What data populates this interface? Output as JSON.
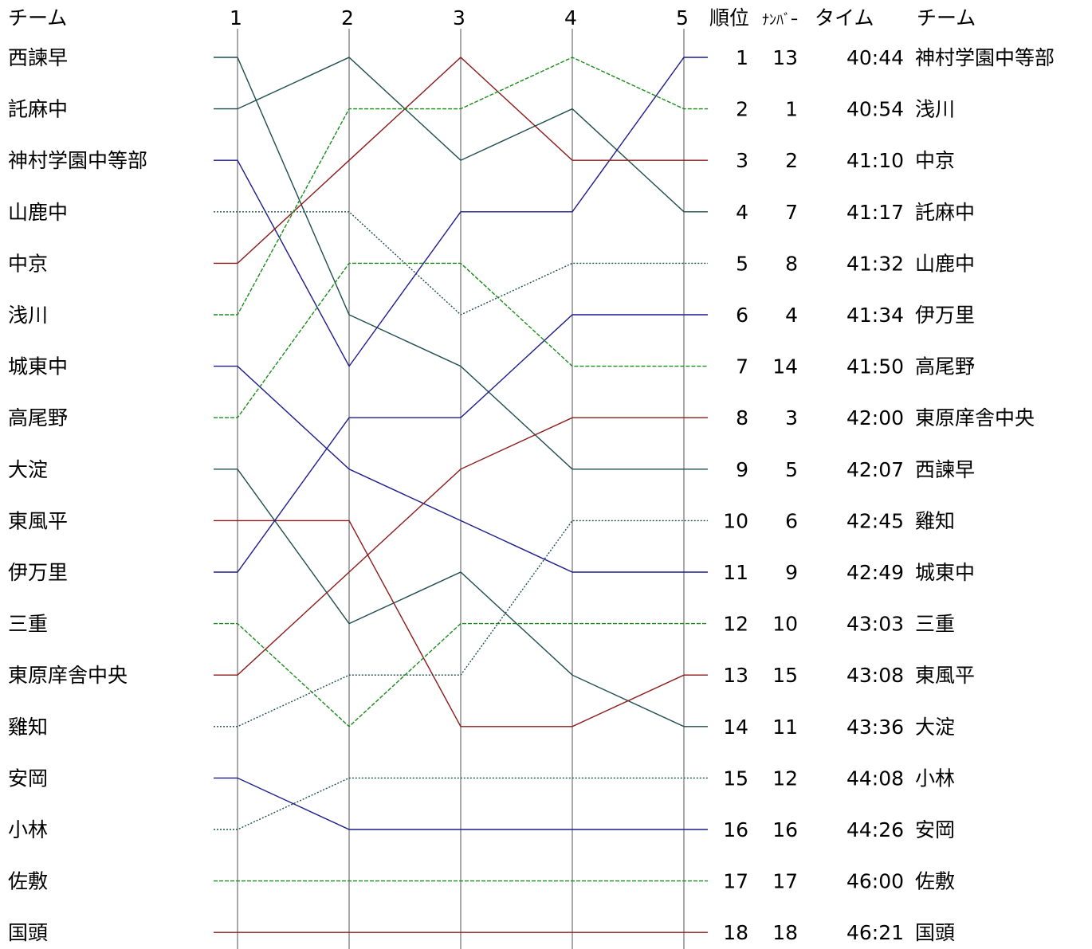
{
  "header": {
    "left_team": "チーム",
    "rank": "順位",
    "number": "ﾅﾝﾊﾞｰ",
    "time": "タイム",
    "right_team": "チーム"
  },
  "chart_data": {
    "type": "line",
    "title": "",
    "x": [
      "1",
      "2",
      "3",
      "4",
      "5"
    ],
    "ylabel": "順位",
    "ylim": [
      1,
      18
    ],
    "y_inverted": true,
    "grid": "vertical lines at each stage",
    "teams": [
      {
        "name": "西諫早",
        "ranks": [
          1,
          6,
          7,
          9,
          9
        ],
        "color": "#1e4d4d",
        "dash": "solid"
      },
      {
        "name": "託麻中",
        "ranks": [
          2,
          1,
          3,
          2,
          4
        ],
        "color": "#1e4d4d",
        "dash": "solid"
      },
      {
        "name": "神村学園中等部",
        "ranks": [
          3,
          7,
          4,
          4,
          1
        ],
        "color": "#1c1c8c",
        "dash": "solid"
      },
      {
        "name": "山鹿中",
        "ranks": [
          4,
          4,
          6,
          5,
          5
        ],
        "color": "#1e4d4d",
        "dash": "dotted"
      },
      {
        "name": "中京",
        "ranks": [
          5,
          3,
          1,
          3,
          3
        ],
        "color": "#8b1a1a",
        "dash": "solid"
      },
      {
        "name": "浅川",
        "ranks": [
          6,
          2,
          2,
          1,
          2
        ],
        "color": "#1a8c1a",
        "dash": "dashed"
      },
      {
        "name": "城東中",
        "ranks": [
          7,
          9,
          10,
          11,
          11
        ],
        "color": "#1c1c8c",
        "dash": "solid"
      },
      {
        "name": "高尾野",
        "ranks": [
          8,
          5,
          5,
          7,
          7
        ],
        "color": "#1a8c1a",
        "dash": "dashed"
      },
      {
        "name": "大淀",
        "ranks": [
          9,
          12,
          11,
          13,
          14
        ],
        "color": "#1e4d4d",
        "dash": "solid"
      },
      {
        "name": "東風平",
        "ranks": [
          10,
          10,
          14,
          14,
          13
        ],
        "color": "#8b1a1a",
        "dash": "solid"
      },
      {
        "name": "伊万里",
        "ranks": [
          11,
          8,
          8,
          6,
          6
        ],
        "color": "#1c1c8c",
        "dash": "solid"
      },
      {
        "name": "三重",
        "ranks": [
          12,
          14,
          12,
          12,
          12
        ],
        "color": "#1a8c1a",
        "dash": "dashed"
      },
      {
        "name": "東原庠舎中央",
        "ranks": [
          13,
          11,
          9,
          8,
          8
        ],
        "color": "#8b1a1a",
        "dash": "solid"
      },
      {
        "name": "雞知",
        "ranks": [
          14,
          13,
          13,
          10,
          10
        ],
        "color": "#1e4d4d",
        "dash": "dotted"
      },
      {
        "name": "安岡",
        "ranks": [
          15,
          16,
          16,
          16,
          16
        ],
        "color": "#1c1c8c",
        "dash": "solid"
      },
      {
        "name": "小林",
        "ranks": [
          16,
          15,
          15,
          15,
          15
        ],
        "color": "#1e4d4d",
        "dash": "dotted"
      },
      {
        "name": "佐敷",
        "ranks": [
          17,
          17,
          17,
          17,
          17
        ],
        "color": "#1a8c1a",
        "dash": "dashed"
      },
      {
        "name": "国頭",
        "ranks": [
          18,
          18,
          18,
          18,
          18
        ],
        "color": "#8b1a1a",
        "dash": "solid"
      }
    ],
    "final_results": [
      {
        "rank": "1",
        "number": "13",
        "time": "40:44",
        "team": "神村学園中等部"
      },
      {
        "rank": "2",
        "number": "1",
        "time": "40:54",
        "team": "浅川"
      },
      {
        "rank": "3",
        "number": "2",
        "time": "41:10",
        "team": "中京"
      },
      {
        "rank": "4",
        "number": "7",
        "time": "41:17",
        "team": "託麻中"
      },
      {
        "rank": "5",
        "number": "8",
        "time": "41:32",
        "team": "山鹿中"
      },
      {
        "rank": "6",
        "number": "4",
        "time": "41:34",
        "team": "伊万里"
      },
      {
        "rank": "7",
        "number": "14",
        "time": "41:50",
        "team": "高尾野"
      },
      {
        "rank": "8",
        "number": "3",
        "time": "42:00",
        "team": "東原庠舎中央"
      },
      {
        "rank": "9",
        "number": "5",
        "time": "42:07",
        "team": "西諫早"
      },
      {
        "rank": "10",
        "number": "6",
        "time": "42:45",
        "team": "雞知"
      },
      {
        "rank": "11",
        "number": "9",
        "time": "42:49",
        "team": "城東中"
      },
      {
        "rank": "12",
        "number": "10",
        "time": "43:03",
        "team": "三重"
      },
      {
        "rank": "13",
        "number": "15",
        "time": "43:08",
        "team": "東風平"
      },
      {
        "rank": "14",
        "number": "11",
        "time": "43:36",
        "team": "大淀"
      },
      {
        "rank": "15",
        "number": "12",
        "time": "44:08",
        "team": "小林"
      },
      {
        "rank": "16",
        "number": "16",
        "time": "44:26",
        "team": "安岡"
      },
      {
        "rank": "17",
        "number": "17",
        "time": "46:00",
        "team": "佐敷"
      },
      {
        "rank": "18",
        "number": "18",
        "time": "46:21",
        "team": "国頭"
      }
    ]
  }
}
